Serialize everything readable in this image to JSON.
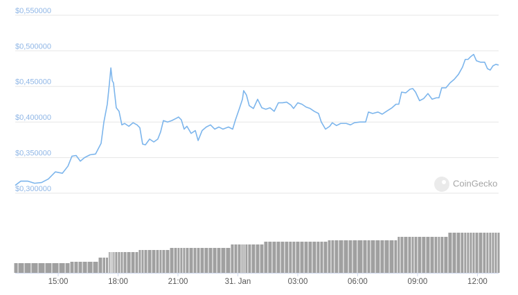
{
  "chart_data": {
    "type": "line",
    "watermark": "CoinGecko",
    "x": [
      12.85,
      13.13,
      13.47,
      13.82,
      14.17,
      14.51,
      14.86,
      15.21,
      15.49,
      15.69,
      15.9,
      16.11,
      16.32,
      16.6,
      16.87,
      17.15,
      17.29,
      17.46,
      17.57,
      17.64,
      17.71,
      17.77,
      17.91,
      18.05,
      18.19,
      18.33,
      18.54,
      18.75,
      18.95,
      19.09,
      19.23,
      19.37,
      19.58,
      19.79,
      19.99,
      20.13,
      20.27,
      20.48,
      20.69,
      20.9,
      21.03,
      21.17,
      21.31,
      21.45,
      21.66,
      21.87,
      22.01,
      22.21,
      22.42,
      22.63,
      22.84,
      23.05,
      23.25,
      23.53,
      23.74,
      23.88,
      24.09,
      24.23,
      24.29,
      24.43,
      24.57,
      24.78,
      24.99,
      25.2,
      25.4,
      25.61,
      25.82,
      26.03,
      26.24,
      26.44,
      26.65,
      26.79,
      27.0,
      27.21,
      27.42,
      27.62,
      27.83,
      28.04,
      28.18,
      28.39,
      28.6,
      28.73,
      28.94,
      29.15,
      29.43,
      29.64,
      29.84,
      30.12,
      30.4,
      30.54,
      30.75,
      31.02,
      31.23,
      31.44,
      31.72,
      31.92,
      32.06,
      32.2,
      32.41,
      32.62,
      32.76,
      32.9,
      33.1,
      33.31,
      33.52,
      33.73,
      33.94,
      34.07,
      34.21,
      34.42,
      34.63,
      34.84,
      35.05,
      35.25,
      35.39,
      35.53,
      35.67,
      35.81,
      35.95,
      36.16,
      36.36,
      36.5,
      36.64,
      36.78,
      36.92,
      37.06
    ],
    "series": [
      {
        "color": "#7cb5ec",
        "values": [
          0.311,
          0.317,
          0.317,
          0.314,
          0.315,
          0.32,
          0.33,
          0.328,
          0.338,
          0.352,
          0.353,
          0.345,
          0.35,
          0.354,
          0.355,
          0.37,
          0.4,
          0.425,
          0.455,
          0.476,
          0.458,
          0.455,
          0.42,
          0.415,
          0.396,
          0.398,
          0.394,
          0.399,
          0.396,
          0.392,
          0.369,
          0.368,
          0.376,
          0.372,
          0.376,
          0.386,
          0.402,
          0.4,
          0.402,
          0.405,
          0.407,
          0.403,
          0.39,
          0.394,
          0.384,
          0.388,
          0.374,
          0.388,
          0.393,
          0.396,
          0.39,
          0.393,
          0.39,
          0.393,
          0.39,
          0.403,
          0.42,
          0.432,
          0.444,
          0.438,
          0.423,
          0.419,
          0.432,
          0.42,
          0.418,
          0.42,
          0.415,
          0.427,
          0.427,
          0.428,
          0.424,
          0.419,
          0.427,
          0.425,
          0.421,
          0.419,
          0.415,
          0.412,
          0.4,
          0.39,
          0.394,
          0.399,
          0.395,
          0.398,
          0.398,
          0.396,
          0.399,
          0.4,
          0.4,
          0.414,
          0.412,
          0.414,
          0.411,
          0.415,
          0.42,
          0.425,
          0.425,
          0.442,
          0.441,
          0.446,
          0.447,
          0.442,
          0.43,
          0.433,
          0.44,
          0.432,
          0.434,
          0.434,
          0.448,
          0.448,
          0.455,
          0.46,
          0.467,
          0.477,
          0.488,
          0.488,
          0.492,
          0.495,
          0.486,
          0.484,
          0.484,
          0.475,
          0.473,
          0.479,
          0.481,
          0.48
        ]
      },
      {
        "color": "#a0a0a0",
        "axis": "y2",
        "type": "bar",
        "values": [
          14,
          14,
          14,
          14,
          14,
          14,
          14,
          14,
          14,
          16,
          16,
          16,
          16,
          16,
          16,
          22,
          22,
          22,
          30,
          30,
          30,
          30,
          30,
          30,
          30,
          30,
          30,
          30,
          30,
          33,
          33,
          33,
          33,
          33,
          33,
          33,
          33,
          33,
          36,
          36,
          36,
          36,
          36,
          36,
          36,
          36,
          36,
          36,
          36,
          36,
          36,
          36,
          36,
          36,
          41,
          41,
          41,
          41,
          41,
          41,
          41,
          41,
          41,
          41,
          45,
          45,
          45,
          45,
          45,
          45,
          45,
          45,
          45,
          45,
          45,
          45,
          45,
          45,
          45,
          45,
          47,
          47,
          47,
          47,
          47,
          47,
          47,
          47,
          47,
          47,
          47,
          47,
          47,
          47,
          47,
          47,
          52,
          52,
          52,
          52,
          52,
          52,
          52,
          52,
          52,
          52,
          52,
          52,
          52,
          52,
          58,
          58,
          58,
          58,
          58,
          58,
          58,
          58,
          58,
          58,
          58,
          58,
          58,
          58,
          58,
          58
        ]
      }
    ],
    "xlim": [
      12.85,
      37.06
    ],
    "xticks": [
      {
        "value": 15,
        "label": "15:00"
      },
      {
        "value": 18,
        "label": "18:00"
      },
      {
        "value": 21,
        "label": "21:00"
      },
      {
        "value": 24,
        "label": "31. Jan"
      },
      {
        "value": 27,
        "label": "03:00"
      },
      {
        "value": 30,
        "label": "06:00"
      },
      {
        "value": 33,
        "label": "09:00"
      },
      {
        "value": 36,
        "label": "12:00"
      }
    ],
    "ylim": [
      0.3,
      0.55
    ],
    "yticks": [
      {
        "value": 0.55,
        "label": "$0,550000"
      },
      {
        "value": 0.5,
        "label": "$0,500000"
      },
      {
        "value": 0.45,
        "label": "$0,450000"
      },
      {
        "value": 0.4,
        "label": "$0,400000"
      },
      {
        "value": 0.35,
        "label": "$0,350000"
      },
      {
        "value": 0.3,
        "label": "$0,300000"
      }
    ],
    "y2lim": [
      0,
      70
    ],
    "grid": true
  }
}
